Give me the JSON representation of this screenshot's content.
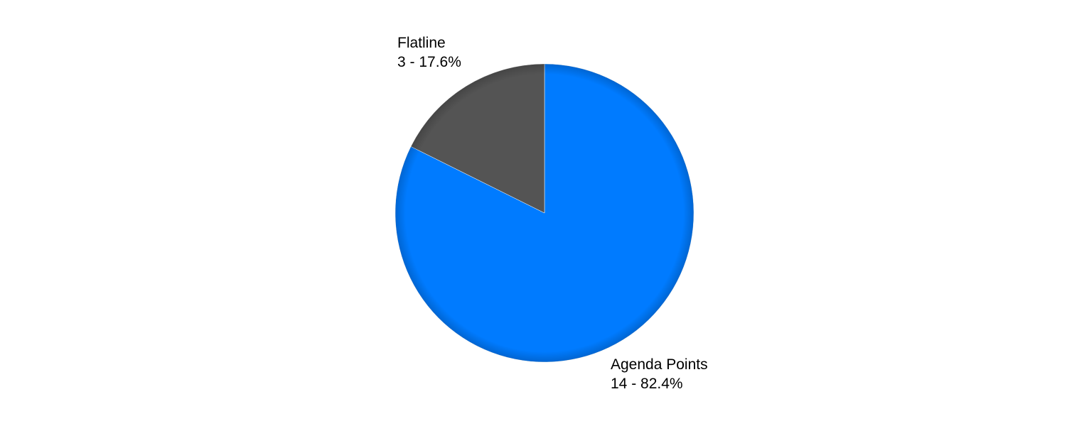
{
  "chart_data": {
    "type": "pie",
    "title": "",
    "slices": [
      {
        "label": "Agenda Points",
        "value": 14,
        "percent_text": "82.4%",
        "detail": "14 - 82.4%",
        "color": "#007bff"
      },
      {
        "label": "Flatline",
        "value": 3,
        "percent_text": "17.6%",
        "detail": "3 - 17.6%",
        "color": "#545454"
      }
    ],
    "start_angle": "12 o'clock",
    "direction": "clockwise"
  }
}
